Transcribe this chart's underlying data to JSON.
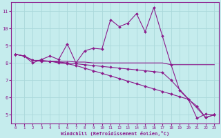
{
  "xlabel": "Windchill (Refroidissement éolien,°C)",
  "background_color": "#c5eced",
  "grid_color": "#aad8da",
  "line_color": "#8b1a8b",
  "xlim": [
    -0.5,
    23.5
  ],
  "ylim": [
    4.5,
    11.5
  ],
  "yticks": [
    5,
    6,
    7,
    8,
    9,
    10,
    11
  ],
  "xticks": [
    0,
    1,
    2,
    3,
    4,
    5,
    6,
    7,
    8,
    9,
    10,
    11,
    12,
    13,
    14,
    15,
    16,
    17,
    18,
    19,
    20,
    21,
    22,
    23
  ],
  "series1_x": [
    0,
    1,
    2,
    3,
    4,
    5,
    6,
    7,
    8,
    9,
    10,
    11,
    12,
    13,
    14,
    15,
    16,
    17,
    18,
    19,
    20,
    21,
    22,
    23
  ],
  "series1_y": [
    8.5,
    8.4,
    8.0,
    8.2,
    8.4,
    8.2,
    9.1,
    8.0,
    8.7,
    8.85,
    8.8,
    10.5,
    10.1,
    10.3,
    10.85,
    9.8,
    11.2,
    9.55,
    7.9,
    6.4,
    5.9,
    4.8,
    5.05,
    5.0
  ],
  "series2_x": [
    0,
    1,
    2,
    3,
    4,
    5,
    6,
    7,
    8,
    9,
    10,
    11,
    12,
    13,
    14,
    15,
    16,
    17,
    18,
    22,
    23
  ],
  "series2_y": [
    8.5,
    8.4,
    8.15,
    8.15,
    8.1,
    8.05,
    8.0,
    7.95,
    7.9,
    7.85,
    7.8,
    7.75,
    7.7,
    7.65,
    7.6,
    7.55,
    7.5,
    7.45,
    7.0,
    4.85,
    5.0
  ],
  "series3_x": [
    0,
    1,
    2,
    3,
    4,
    5,
    6,
    7,
    8,
    9,
    10,
    11,
    12,
    13,
    14,
    15,
    16,
    17,
    18,
    19,
    20,
    21,
    22,
    23
  ],
  "series3_y": [
    8.5,
    8.4,
    8.15,
    8.1,
    8.1,
    8.0,
    7.95,
    7.85,
    7.7,
    7.55,
    7.4,
    7.25,
    7.1,
    6.95,
    6.8,
    6.65,
    6.5,
    6.35,
    6.2,
    6.05,
    5.9,
    5.5,
    4.85,
    5.0
  ],
  "series4_x": [
    0,
    1,
    2,
    3,
    4,
    5,
    6,
    7,
    8,
    9,
    10,
    11,
    12,
    13,
    14,
    15,
    16,
    17,
    18,
    19,
    20,
    21,
    22,
    23
  ],
  "series4_y": [
    8.5,
    8.4,
    8.15,
    8.1,
    8.1,
    8.1,
    8.1,
    8.05,
    8.05,
    8.0,
    8.0,
    8.0,
    8.0,
    8.0,
    8.0,
    8.0,
    8.0,
    8.0,
    7.9,
    7.9,
    7.9,
    7.9,
    7.9,
    7.9
  ]
}
